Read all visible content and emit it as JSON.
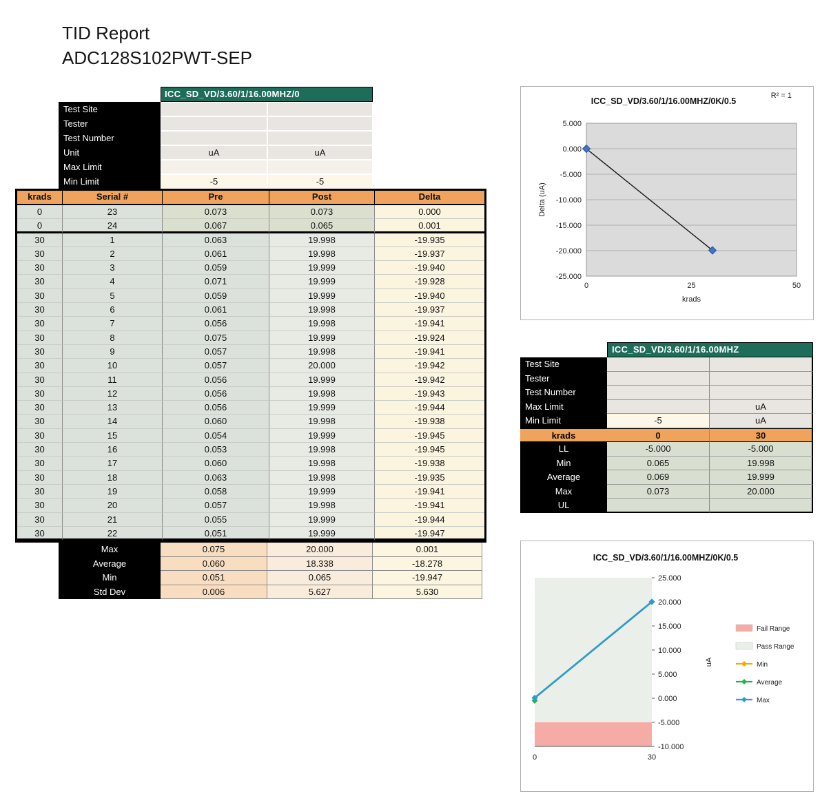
{
  "page": {
    "title_line1": "TID Report",
    "title_line2": "ADC128S102PWT-SEP"
  },
  "colors": {
    "teal_header": "#1E6C5A",
    "orange_header": "#F0A35C",
    "table_green": "#DBE2DB",
    "table_post": "#E7EBE4",
    "table_cream": "#FBF4DF",
    "summary_peach": "#F8DDC0",
    "info_gray": "#E9E5E0",
    "cream": "#FCF7E6",
    "sage": "#D9DFD0",
    "fail_pink": "#F5ACA6",
    "pass_gray": "#EBEFEA",
    "min_orange": "#FFA500",
    "avg_green": "#21B24B",
    "max_blue": "#2E9BD6",
    "marker_blue": "#4472C4"
  },
  "left_table": {
    "header": "ICC_SD_VD/3.60/1/16.00MHZ/0",
    "info_rows": [
      {
        "label": "Test Site",
        "values": [
          "",
          ""
        ]
      },
      {
        "label": "Tester",
        "values": [
          "",
          ""
        ]
      },
      {
        "label": "Test Number",
        "values": [
          "",
          ""
        ]
      },
      {
        "label": "Unit",
        "values": [
          "uA",
          "uA"
        ]
      },
      {
        "label": "Max Limit",
        "values": [
          "",
          ""
        ]
      },
      {
        "label": "Min Limit",
        "values": [
          "-5",
          "-5"
        ]
      }
    ],
    "columns": [
      "krads",
      "Serial #",
      "Pre",
      "Post",
      "Delta"
    ],
    "rows": [
      [
        "0",
        "23",
        "0.073",
        "0.073",
        "0.000"
      ],
      [
        "0",
        "24",
        "0.067",
        "0.065",
        "0.001"
      ],
      [
        "30",
        "1",
        "0.063",
        "19.998",
        "-19.935"
      ],
      [
        "30",
        "2",
        "0.061",
        "19.998",
        "-19.937"
      ],
      [
        "30",
        "3",
        "0.059",
        "19.999",
        "-19.940"
      ],
      [
        "30",
        "4",
        "0.071",
        "19.999",
        "-19.928"
      ],
      [
        "30",
        "5",
        "0.059",
        "19.999",
        "-19.940"
      ],
      [
        "30",
        "6",
        "0.061",
        "19.998",
        "-19.937"
      ],
      [
        "30",
        "7",
        "0.056",
        "19.998",
        "-19.941"
      ],
      [
        "30",
        "8",
        "0.075",
        "19.999",
        "-19.924"
      ],
      [
        "30",
        "9",
        "0.057",
        "19.998",
        "-19.941"
      ],
      [
        "30",
        "10",
        "0.057",
        "20.000",
        "-19.942"
      ],
      [
        "30",
        "11",
        "0.056",
        "19.999",
        "-19.942"
      ],
      [
        "30",
        "12",
        "0.056",
        "19.998",
        "-19.943"
      ],
      [
        "30",
        "13",
        "0.056",
        "19.999",
        "-19.944"
      ],
      [
        "30",
        "14",
        "0.060",
        "19.998",
        "-19.938"
      ],
      [
        "30",
        "15",
        "0.054",
        "19.999",
        "-19.945"
      ],
      [
        "30",
        "16",
        "0.053",
        "19.998",
        "-19.945"
      ],
      [
        "30",
        "17",
        "0.060",
        "19.998",
        "-19.938"
      ],
      [
        "30",
        "18",
        "0.063",
        "19.998",
        "-19.935"
      ],
      [
        "30",
        "19",
        "0.058",
        "19.999",
        "-19.941"
      ],
      [
        "30",
        "20",
        "0.057",
        "19.998",
        "-19.941"
      ],
      [
        "30",
        "21",
        "0.055",
        "19.999",
        "-19.944"
      ],
      [
        "30",
        "22",
        "0.051",
        "19.999",
        "-19.947"
      ]
    ],
    "summary_rows": [
      {
        "label": "Max",
        "values": [
          "0.075",
          "20.000",
          "0.001"
        ]
      },
      {
        "label": "Average",
        "values": [
          "0.060",
          "18.338",
          "-18.278"
        ]
      },
      {
        "label": "Min",
        "values": [
          "0.051",
          "0.065",
          "-19.947"
        ]
      },
      {
        "label": "Std Dev",
        "values": [
          "0.006",
          "5.627",
          "5.630"
        ]
      }
    ]
  },
  "right_table": {
    "header": "ICC_SD_VD/3.60/1/16.00MHZ",
    "info_rows": [
      {
        "label": "Test Site",
        "values": [
          "",
          ""
        ]
      },
      {
        "label": "Tester",
        "values": [
          "",
          ""
        ]
      },
      {
        "label": "Test Number",
        "values": [
          "",
          ""
        ]
      },
      {
        "label": "Max Limit",
        "values": [
          "",
          "uA"
        ]
      },
      {
        "label": "Min Limit",
        "values": [
          "-5",
          "uA"
        ]
      }
    ],
    "krads_row": {
      "label": "krads",
      "values": [
        "0",
        "30"
      ]
    },
    "stat_rows": [
      {
        "label": "LL",
        "values": [
          "-5.000",
          "-5.000"
        ]
      },
      {
        "label": "Min",
        "values": [
          "0.065",
          "19.998"
        ]
      },
      {
        "label": "Average",
        "values": [
          "0.069",
          "19.999"
        ]
      },
      {
        "label": "Max",
        "values": [
          "0.073",
          "20.000"
        ]
      },
      {
        "label": "UL",
        "values": [
          "",
          ""
        ]
      }
    ]
  },
  "chart_data": [
    {
      "type": "scatter",
      "title": "ICC_SD_VD/3.60/1/16.00MHZ/0K/0.5",
      "annotation": "R² = 1",
      "xlabel": "krads",
      "ylabel": "Delta (uA)",
      "xlim": [
        0,
        50
      ],
      "ylim": [
        -25,
        5
      ],
      "xticks": [
        "0",
        "25",
        "50"
      ],
      "yticks": [
        "5.000",
        "0.000",
        "-5.000",
        "-10.000",
        "-15.000",
        "-20.000",
        "-25.000"
      ],
      "points": [
        [
          0,
          0.0
        ],
        [
          30,
          -19.942
        ]
      ],
      "trendline": true,
      "marker": "diamond",
      "grid": true,
      "legend_position": "none"
    },
    {
      "type": "line",
      "title": "ICC_SD_VD/3.60/1/16.00MHZ/0K/0.5",
      "ylabel": "uA",
      "xlim": [
        0,
        30
      ],
      "ylim": [
        -10,
        25
      ],
      "xticks": [
        "0",
        "30"
      ],
      "yticks": [
        "25.000",
        "20.000",
        "15.000",
        "10.000",
        "5.000",
        "0.000",
        "-5.000",
        "-10.000"
      ],
      "fail_range": [
        -10,
        -5
      ],
      "pass_range": [
        -5,
        25
      ],
      "series": [
        {
          "name": "Min",
          "color": "#FFA500",
          "points": [
            [
              0,
              0.065
            ],
            [
              30,
              19.998
            ]
          ]
        },
        {
          "name": "Average",
          "color": "#21B24B",
          "points": [
            [
              0,
              0.069
            ],
            [
              30,
              19.999
            ]
          ]
        },
        {
          "name": "Max",
          "color": "#2E9BD6",
          "points": [
            [
              0,
              0.073
            ],
            [
              30,
              20.0
            ]
          ]
        }
      ],
      "legend": [
        {
          "label": "Fail Range",
          "type": "box",
          "color": "#F5ACA6"
        },
        {
          "label": "Pass Range",
          "type": "box",
          "color": "#EBEFEA"
        },
        {
          "label": "Min",
          "type": "line",
          "color": "#FFA500"
        },
        {
          "label": "Average",
          "type": "line",
          "color": "#21B24B"
        },
        {
          "label": "Max",
          "type": "line",
          "color": "#2E9BD6"
        }
      ],
      "legend_position": "right"
    }
  ]
}
